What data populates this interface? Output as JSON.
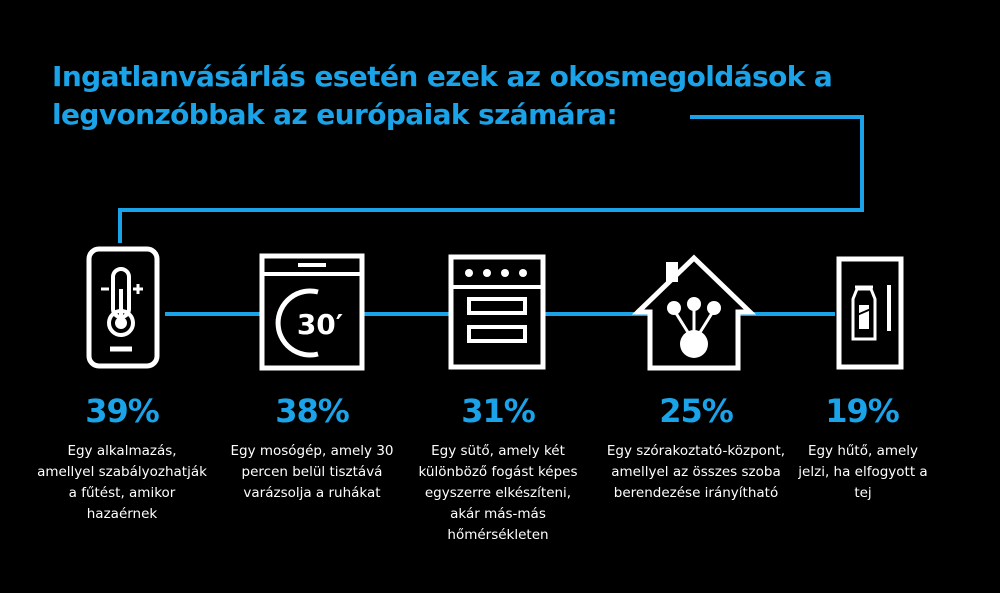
{
  "title": "Ingatlanvásárlás esetén ezek az okosmegoldások a legvonzóbbak az európaiak számára:",
  "accent_color": "#1aa3e8",
  "items": [
    {
      "icon": "thermostat-icon",
      "percent": "39%",
      "description": "Egy alkalmazás, amellyel szabályozhatják a fűtést, amikor hazaérnek"
    },
    {
      "icon": "washing-machine-icon",
      "icon_text": "30′",
      "percent": "38%",
      "description": "Egy mosógép, amely 30 percen belül tisztává varázsolja a ruhákat"
    },
    {
      "icon": "oven-icon",
      "percent": "31%",
      "description": "Egy sütő, amely két különböző fogást képes egyszerre elkészíteni, akár más-más hőmérsékleten"
    },
    {
      "icon": "smart-home-hub-icon",
      "percent": "25%",
      "description": "Egy szórakoztató-központ, amellyel az összes szoba berendezése irányítható"
    },
    {
      "icon": "refrigerator-icon",
      "percent": "19%",
      "description": "Egy hűtő, amely jelzi, ha elfogyott a tej"
    }
  ]
}
